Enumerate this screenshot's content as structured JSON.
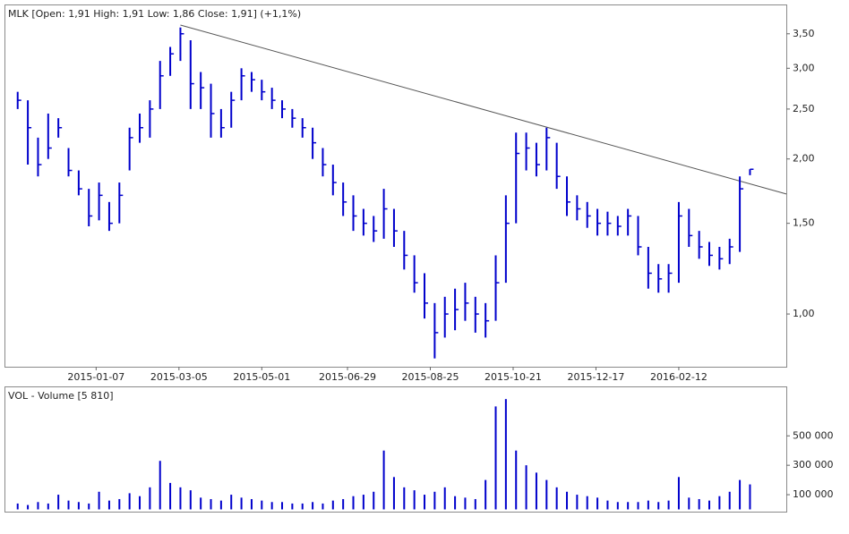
{
  "chart_data": [
    {
      "type": "ohlc",
      "title": "MLK [Open: 1,91  High: 1,91  Low: 1,86  Close: 1,91] (+1,1%)",
      "color": "#0000cc",
      "log_scale": true,
      "x": [
        "2014-11-14",
        "2014-11-21",
        "2014-11-28",
        "2014-12-05",
        "2014-12-12",
        "2014-12-19",
        "2014-12-26",
        "2015-01-02",
        "2015-01-09",
        "2015-01-16",
        "2015-01-23",
        "2015-01-30",
        "2015-02-06",
        "2015-02-13",
        "2015-02-20",
        "2015-02-27",
        "2015-03-06",
        "2015-03-13",
        "2015-03-20",
        "2015-03-27",
        "2015-04-03",
        "2015-04-10",
        "2015-04-17",
        "2015-04-24",
        "2015-05-01",
        "2015-05-08",
        "2015-05-15",
        "2015-05-22",
        "2015-05-29",
        "2015-06-05",
        "2015-06-12",
        "2015-06-19",
        "2015-06-26",
        "2015-07-03",
        "2015-07-10",
        "2015-07-17",
        "2015-07-24",
        "2015-07-31",
        "2015-08-07",
        "2015-08-14",
        "2015-08-21",
        "2015-08-28",
        "2015-09-04",
        "2015-09-11",
        "2015-09-18",
        "2015-09-25",
        "2015-10-02",
        "2015-10-09",
        "2015-10-16",
        "2015-10-23",
        "2015-10-30",
        "2015-11-06",
        "2015-11-13",
        "2015-11-20",
        "2015-11-27",
        "2015-12-04",
        "2015-12-11",
        "2015-12-18",
        "2015-12-25",
        "2016-01-01",
        "2016-01-08",
        "2016-01-15",
        "2016-01-22",
        "2016-01-29",
        "2016-02-05",
        "2016-02-12",
        "2016-02-19",
        "2016-02-26",
        "2016-03-04",
        "2016-03-11",
        "2016-03-18",
        "2016-03-25",
        "2016-04-01"
      ],
      "high": [
        2.7,
        2.6,
        2.2,
        2.45,
        2.4,
        2.1,
        1.9,
        1.75,
        1.8,
        1.65,
        1.8,
        2.3,
        2.45,
        2.6,
        3.1,
        3.3,
        3.6,
        3.4,
        2.95,
        2.8,
        2.5,
        2.7,
        3.0,
        2.95,
        2.85,
        2.75,
        2.6,
        2.5,
        2.4,
        2.3,
        2.1,
        1.95,
        1.8,
        1.7,
        1.6,
        1.55,
        1.75,
        1.6,
        1.45,
        1.3,
        1.2,
        1.05,
        1.08,
        1.12,
        1.15,
        1.08,
        1.05,
        1.3,
        1.7,
        2.25,
        2.25,
        2.15,
        2.3,
        2.15,
        1.85,
        1.7,
        1.65,
        1.6,
        1.58,
        1.55,
        1.6,
        1.55,
        1.35,
        1.25,
        1.25,
        1.65,
        1.6,
        1.45,
        1.38,
        1.35,
        1.4,
        1.85,
        1.91
      ],
      "low": [
        2.5,
        1.95,
        1.85,
        2.0,
        2.2,
        1.85,
        1.7,
        1.48,
        1.52,
        1.45,
        1.5,
        1.9,
        2.15,
        2.2,
        2.5,
        2.9,
        3.1,
        2.5,
        2.5,
        2.2,
        2.2,
        2.3,
        2.6,
        2.7,
        2.6,
        2.5,
        2.4,
        2.3,
        2.2,
        2.0,
        1.85,
        1.7,
        1.55,
        1.45,
        1.42,
        1.38,
        1.4,
        1.35,
        1.22,
        1.1,
        0.98,
        0.82,
        0.9,
        0.93,
        0.97,
        0.92,
        0.9,
        0.97,
        1.15,
        1.5,
        1.9,
        1.85,
        1.9,
        1.75,
        1.55,
        1.52,
        1.47,
        1.42,
        1.42,
        1.42,
        1.42,
        1.3,
        1.12,
        1.1,
        1.1,
        1.15,
        1.35,
        1.28,
        1.24,
        1.22,
        1.25,
        1.32,
        1.86
      ],
      "close": [
        2.6,
        2.3,
        1.95,
        2.1,
        2.3,
        1.9,
        1.75,
        1.55,
        1.7,
        1.5,
        1.7,
        2.2,
        2.3,
        2.5,
        2.9,
        3.2,
        3.5,
        2.8,
        2.75,
        2.45,
        2.3,
        2.6,
        2.9,
        2.85,
        2.7,
        2.6,
        2.5,
        2.4,
        2.3,
        2.15,
        1.95,
        1.8,
        1.65,
        1.55,
        1.5,
        1.45,
        1.6,
        1.45,
        1.3,
        1.15,
        1.05,
        0.92,
        1.0,
        1.02,
        1.05,
        1.0,
        0.97,
        1.15,
        1.5,
        2.05,
        2.1,
        1.95,
        2.2,
        1.85,
        1.65,
        1.6,
        1.55,
        1.5,
        1.5,
        1.48,
        1.55,
        1.35,
        1.2,
        1.17,
        1.2,
        1.55,
        1.42,
        1.35,
        1.3,
        1.28,
        1.35,
        1.75,
        1.91
      ],
      "trendline": {
        "x": [
          "2015-03-06",
          "2016-04-26"
        ],
        "values": [
          3.64,
          1.71
        ],
        "color": "#555555"
      },
      "xlim": [
        "2014-11-08",
        "2016-04-26"
      ],
      "xticks": [
        "2015-01-07",
        "2015-03-05",
        "2015-05-01",
        "2015-06-29",
        "2015-08-25",
        "2015-10-21",
        "2015-12-17",
        "2016-02-12"
      ],
      "ylim": [
        0.79,
        3.99
      ],
      "yticks": [
        {
          "value": 1.0,
          "label": "1,00"
        },
        {
          "value": 1.5,
          "label": "1,50"
        },
        {
          "value": 2.0,
          "label": "2,00"
        },
        {
          "value": 2.5,
          "label": "2,50"
        },
        {
          "value": 3.0,
          "label": "3,00"
        },
        {
          "value": 3.5,
          "label": "3,50"
        }
      ]
    },
    {
      "type": "bar",
      "title": "VOL - Volume [5 810]",
      "color": "#0000cc",
      "x": [
        "2014-11-14",
        "2014-11-21",
        "2014-11-28",
        "2014-12-05",
        "2014-12-12",
        "2014-12-19",
        "2014-12-26",
        "2015-01-02",
        "2015-01-09",
        "2015-01-16",
        "2015-01-23",
        "2015-01-30",
        "2015-02-06",
        "2015-02-13",
        "2015-02-20",
        "2015-02-27",
        "2015-03-06",
        "2015-03-13",
        "2015-03-20",
        "2015-03-27",
        "2015-04-03",
        "2015-04-10",
        "2015-04-17",
        "2015-04-24",
        "2015-05-01",
        "2015-05-08",
        "2015-05-15",
        "2015-05-22",
        "2015-05-29",
        "2015-06-05",
        "2015-06-12",
        "2015-06-19",
        "2015-06-26",
        "2015-07-03",
        "2015-07-10",
        "2015-07-17",
        "2015-07-24",
        "2015-07-31",
        "2015-08-07",
        "2015-08-14",
        "2015-08-21",
        "2015-08-28",
        "2015-09-04",
        "2015-09-11",
        "2015-09-18",
        "2015-09-25",
        "2015-10-02",
        "2015-10-09",
        "2015-10-16",
        "2015-10-23",
        "2015-10-30",
        "2015-11-06",
        "2015-11-13",
        "2015-11-20",
        "2015-11-27",
        "2015-12-04",
        "2015-12-11",
        "2015-12-18",
        "2015-12-25",
        "2016-01-01",
        "2016-01-08",
        "2016-01-15",
        "2016-01-22",
        "2016-01-29",
        "2016-02-05",
        "2016-02-12",
        "2016-02-19",
        "2016-02-26",
        "2016-03-04",
        "2016-03-11",
        "2016-03-18",
        "2016-03-25",
        "2016-04-01"
      ],
      "values": [
        40000,
        30000,
        50000,
        40000,
        100000,
        60000,
        50000,
        40000,
        120000,
        60000,
        70000,
        110000,
        90000,
        150000,
        330000,
        180000,
        150000,
        130000,
        80000,
        70000,
        60000,
        100000,
        80000,
        70000,
        60000,
        50000,
        50000,
        40000,
        40000,
        50000,
        40000,
        60000,
        70000,
        90000,
        100000,
        120000,
        400000,
        220000,
        150000,
        130000,
        100000,
        120000,
        150000,
        90000,
        80000,
        70000,
        200000,
        700000,
        750000,
        400000,
        300000,
        250000,
        200000,
        150000,
        120000,
        100000,
        90000,
        80000,
        60000,
        50000,
        50000,
        50000,
        60000,
        50000,
        60000,
        220000,
        80000,
        70000,
        60000,
        90000,
        120000,
        200000,
        170000
      ],
      "xlim": [
        "2014-11-08",
        "2016-04-26"
      ],
      "ylim": [
        0,
        830000
      ],
      "yticks": [
        {
          "value": 100000,
          "label": "100 000"
        },
        {
          "value": 300000,
          "label": "300 000"
        },
        {
          "value": 500000,
          "label": "500 000"
        }
      ]
    }
  ]
}
